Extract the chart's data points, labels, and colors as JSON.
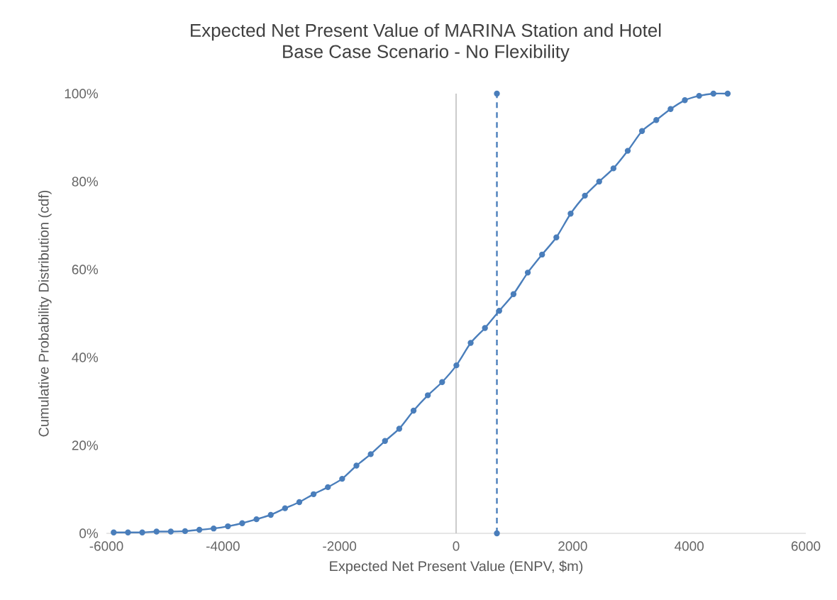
{
  "chart_data": {
    "type": "line",
    "title": "Expected Net Present Value of MARINA Station and Hotel",
    "subtitle": "Base Case Scenario - No Flexibility",
    "xlabel": "Expected Net Present Value (ENPV, $m)",
    "ylabel": "Cumulative Probability Distribution (cdf)",
    "xlim": [
      -6000,
      6000
    ],
    "xticks": [
      -6000,
      -4000,
      -2000,
      0,
      2000,
      4000,
      6000
    ],
    "ylim": [
      0,
      100
    ],
    "yticks": [
      {
        "value": 0,
        "label": "0%"
      },
      {
        "value": 20,
        "label": "20%"
      },
      {
        "value": 40,
        "label": "40%"
      },
      {
        "value": 60,
        "label": "60%"
      },
      {
        "value": 80,
        "label": "80%"
      },
      {
        "value": 100,
        "label": "100%"
      }
    ],
    "grid": false,
    "ref_lines": [
      {
        "axis": "x",
        "value": 0,
        "color": "#bfbfbf"
      }
    ],
    "series": [
      {
        "color": "#4a7ebb",
        "marker": "circle",
        "line_style": "solid",
        "x": [
          -5875,
          -5630,
          -5385,
          -5140,
          -4895,
          -4650,
          -4405,
          -4160,
          -3915,
          -3670,
          -3425,
          -3180,
          -2935,
          -2690,
          -2445,
          -2200,
          -1955,
          -1710,
          -1465,
          -1220,
          -975,
          -730,
          -485,
          -240,
          5,
          250,
          495,
          740,
          985,
          1230,
          1475,
          1720,
          1965,
          2210,
          2455,
          2700,
          2945,
          3190,
          3435,
          3680,
          3925,
          4170,
          4415,
          4660
        ],
        "values": [
          0.2,
          0.2,
          0.2,
          0.4,
          0.4,
          0.5,
          0.8,
          1.1,
          1.6,
          2.3,
          3.2,
          4.2,
          5.7,
          7.1,
          8.9,
          10.5,
          12.4,
          15.4,
          18,
          21,
          23.8,
          27.9,
          31.4,
          34.4,
          38.2,
          43.3,
          46.7,
          50.6,
          54.4,
          59.3,
          63.4,
          67.3,
          72.7,
          76.8,
          80,
          83,
          87,
          91.5,
          94,
          96.5,
          98.5,
          99.5,
          100,
          100
        ]
      },
      {
        "color": "#4a7ebb",
        "marker": "circle",
        "line_style": "dashed",
        "x": [
          700,
          700
        ],
        "values": [
          0,
          100
        ]
      }
    ]
  }
}
